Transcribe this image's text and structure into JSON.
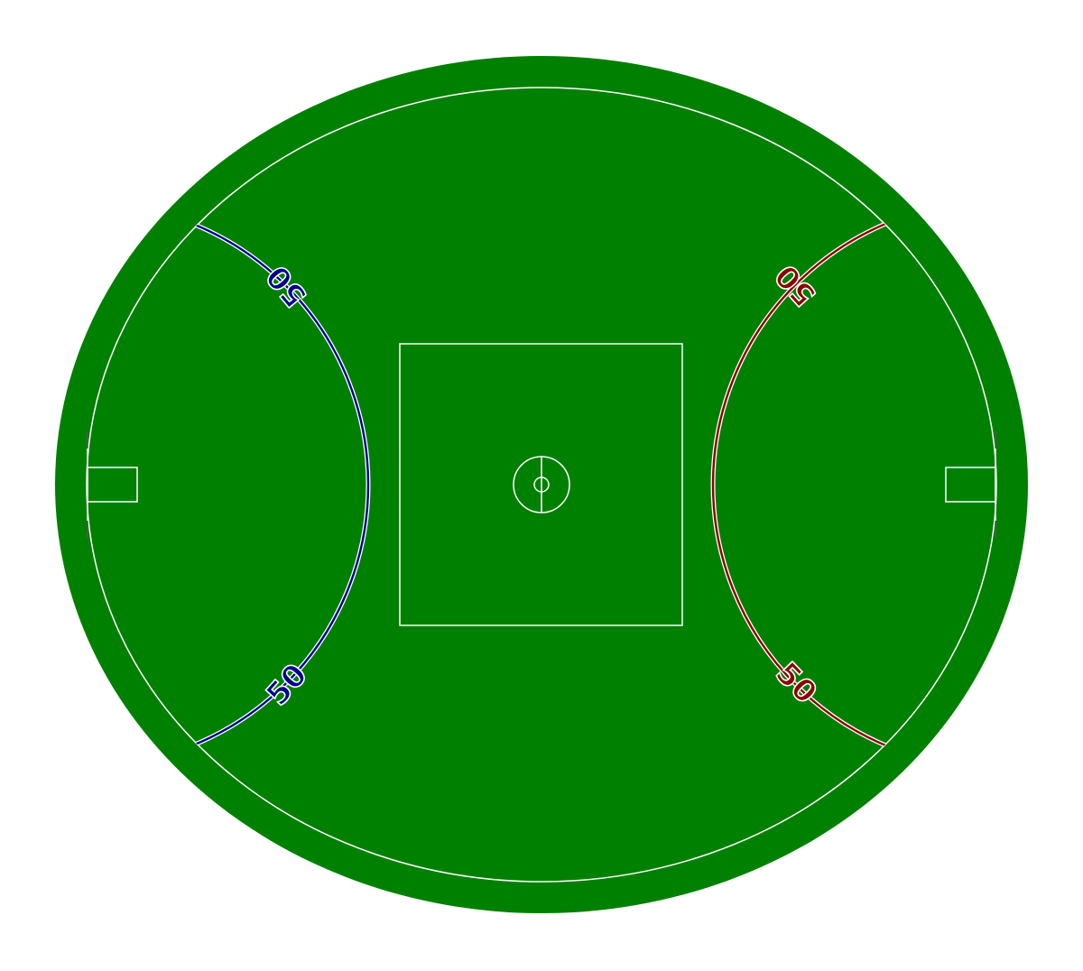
{
  "colors": {
    "background": "#ffffff",
    "grass": "#008000",
    "line": "#ffffff",
    "left_arc": "#00008b",
    "right_arc": "#8b0000"
  },
  "labels": {
    "left_arc_top": "50",
    "left_arc_bottom": "50",
    "right_arc_top": "50",
    "right_arc_bottom": "50"
  }
}
